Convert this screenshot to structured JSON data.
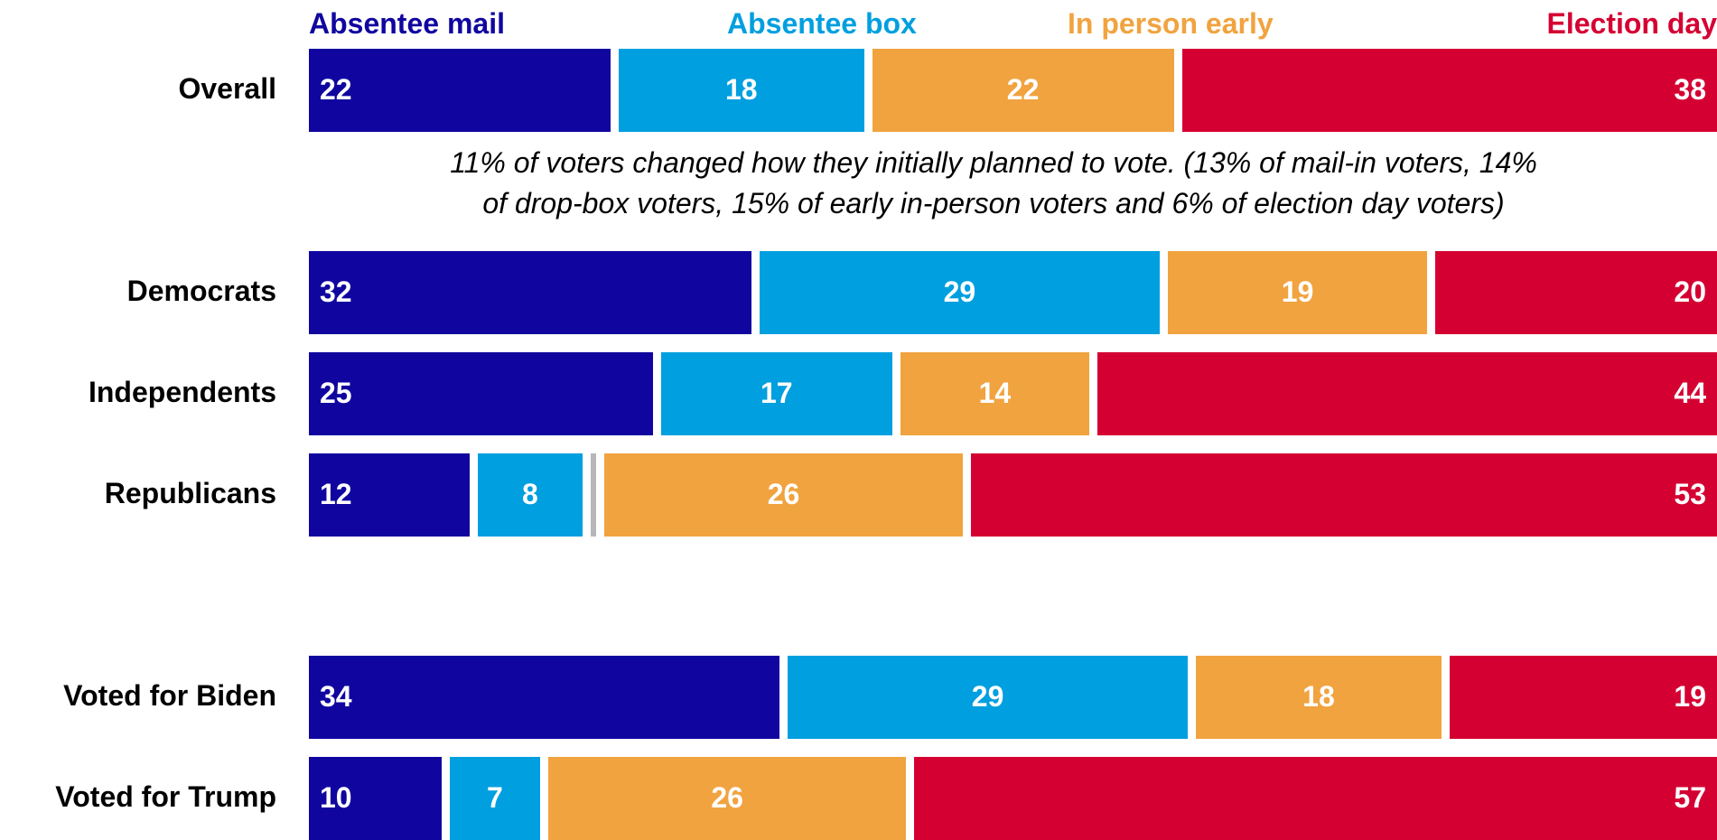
{
  "chart_data": {
    "type": "bar",
    "orientation": "horizontal",
    "stacked": true,
    "xlim": [
      0,
      100
    ],
    "legend_position": "top",
    "categories": [
      "Overall",
      "Democrats",
      "Independents",
      "Republicans",
      "Voted for Biden",
      "Voted for Trump"
    ],
    "series": [
      {
        "name": "Absentee mail",
        "color": "#10069F",
        "values": [
          22,
          32,
          25,
          12,
          34,
          10
        ]
      },
      {
        "name": "Absentee box",
        "color": "#009FDF",
        "values": [
          18,
          29,
          17,
          8,
          29,
          7
        ]
      },
      {
        "name": "In person early",
        "color": "#F1A33F",
        "values": [
          22,
          19,
          14,
          26,
          18,
          26
        ]
      },
      {
        "name": "Election day",
        "color": "#D50032",
        "values": [
          38,
          20,
          44,
          53,
          19,
          57
        ]
      }
    ],
    "gap_color": "#B7B7B7",
    "annotation": [
      "11% of voters changed how they initially planned to vote. (13% of mail-in voters, 14%",
      "of drop-box voters, 15% of early in-person voters and 6% of election day voters)"
    ]
  }
}
